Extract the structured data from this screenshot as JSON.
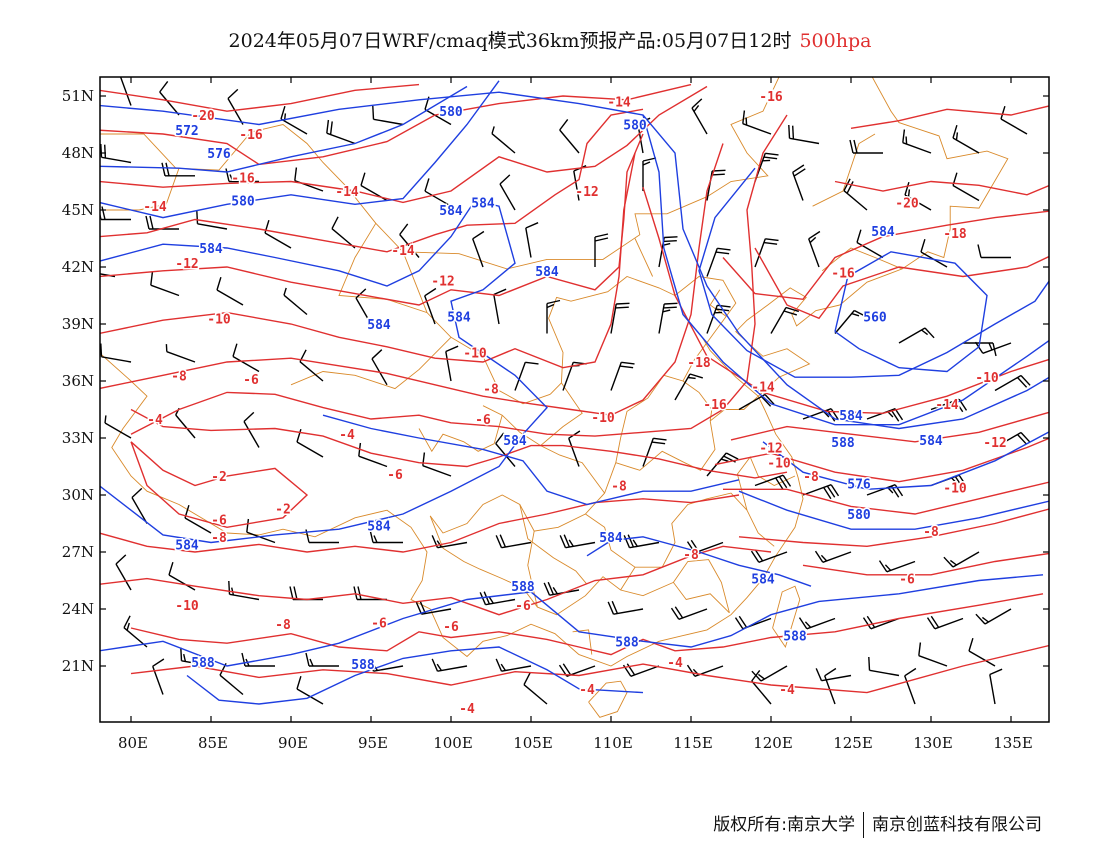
{
  "title": {
    "main": "2024年05月07日WRF/cmaq模式36km预报产品:05月07日12时",
    "level": "500hpa"
  },
  "axes": {
    "lat_labels": [
      "51N",
      "48N",
      "45N",
      "42N",
      "39N",
      "36N",
      "33N",
      "30N",
      "27N",
      "24N",
      "21N"
    ],
    "lon_labels": [
      "80E",
      "85E",
      "90E",
      "95E",
      "100E",
      "105E",
      "110E",
      "115E",
      "120E",
      "125E",
      "130E",
      "135E"
    ]
  },
  "colors": {
    "temperature": "#e03030",
    "height": "#1f3fe0",
    "borders": "#d98a2b",
    "wind": "#000000"
  },
  "temperature_labels": [
    {
      "text": "-20",
      "lon": 84.5,
      "lat": 50.0
    },
    {
      "text": "-16",
      "lon": 87.5,
      "lat": 49.0
    },
    {
      "text": "-16",
      "lon": 87.0,
      "lat": 46.7
    },
    {
      "text": "-14",
      "lon": 93.5,
      "lat": 46.0
    },
    {
      "text": "-14",
      "lon": 81.5,
      "lat": 45.2
    },
    {
      "text": "-14",
      "lon": 97.0,
      "lat": 42.9
    },
    {
      "text": "-12",
      "lon": 83.5,
      "lat": 42.2
    },
    {
      "text": "-12",
      "lon": 99.5,
      "lat": 41.3
    },
    {
      "text": "-10",
      "lon": 85.5,
      "lat": 39.3
    },
    {
      "text": "-10",
      "lon": 101.5,
      "lat": 37.5
    },
    {
      "text": "-8",
      "lon": 83.0,
      "lat": 36.3
    },
    {
      "text": "-6",
      "lon": 87.5,
      "lat": 36.1
    },
    {
      "text": "-8",
      "lon": 102.5,
      "lat": 35.6
    },
    {
      "text": "-6",
      "lon": 102.0,
      "lat": 34.0
    },
    {
      "text": "-4",
      "lon": 93.5,
      "lat": 33.2
    },
    {
      "text": "-4",
      "lon": 81.5,
      "lat": 34.0
    },
    {
      "text": "-2",
      "lon": 85.5,
      "lat": 31.0
    },
    {
      "text": "-6",
      "lon": 96.5,
      "lat": 31.1
    },
    {
      "text": "-2",
      "lon": 89.5,
      "lat": 29.3
    },
    {
      "text": "-6",
      "lon": 85.5,
      "lat": 28.7
    },
    {
      "text": "-8",
      "lon": 85.5,
      "lat": 27.8
    },
    {
      "text": "-10",
      "lon": 83.5,
      "lat": 24.2
    },
    {
      "text": "-8",
      "lon": 89.5,
      "lat": 23.2
    },
    {
      "text": "-6",
      "lon": 95.5,
      "lat": 23.3
    },
    {
      "text": "-6",
      "lon": 100.0,
      "lat": 23.1
    },
    {
      "text": "-6",
      "lon": 104.5,
      "lat": 24.2
    },
    {
      "text": "-8",
      "lon": 110.5,
      "lat": 30.5
    },
    {
      "text": "-10",
      "lon": 109.5,
      "lat": 34.1
    },
    {
      "text": "-12",
      "lon": 108.5,
      "lat": 46.0
    },
    {
      "text": "-14",
      "lon": 110.5,
      "lat": 50.7
    },
    {
      "text": "-16",
      "lon": 120.0,
      "lat": 51.0
    },
    {
      "text": "-18",
      "lon": 115.5,
      "lat": 37.0
    },
    {
      "text": "-16",
      "lon": 116.5,
      "lat": 34.8
    },
    {
      "text": "-14",
      "lon": 119.5,
      "lat": 35.7
    },
    {
      "text": "-12",
      "lon": 120.0,
      "lat": 32.5
    },
    {
      "text": "-10",
      "lon": 120.5,
      "lat": 31.7
    },
    {
      "text": "-8",
      "lon": 122.5,
      "lat": 31.0
    },
    {
      "text": "-8",
      "lon": 115.0,
      "lat": 26.9
    },
    {
      "text": "-6",
      "lon": 128.5,
      "lat": 25.6
    },
    {
      "text": "-4",
      "lon": 121.0,
      "lat": 19.8
    },
    {
      "text": "-4",
      "lon": 114.0,
      "lat": 21.2
    },
    {
      "text": "-4",
      "lon": 108.5,
      "lat": 19.8
    },
    {
      "text": "-4",
      "lon": 101.0,
      "lat": 18.8
    },
    {
      "text": "-8",
      "lon": 130.0,
      "lat": 28.1
    },
    {
      "text": "-10",
      "lon": 131.5,
      "lat": 30.4
    },
    {
      "text": "-14",
      "lon": 131.0,
      "lat": 34.8
    },
    {
      "text": "-12",
      "lon": 134.0,
      "lat": 32.8
    },
    {
      "text": "-10",
      "lon": 133.5,
      "lat": 36.2
    },
    {
      "text": "-16",
      "lon": 124.5,
      "lat": 41.7
    },
    {
      "text": "-18",
      "lon": 131.5,
      "lat": 43.8
    },
    {
      "text": "-20",
      "lon": 128.5,
      "lat": 45.4
    }
  ],
  "height_labels": [
    {
      "text": "572",
      "lon": 83.5,
      "lat": 49.2
    },
    {
      "text": "576",
      "lon": 85.5,
      "lat": 48.0
    },
    {
      "text": "580",
      "lon": 87.0,
      "lat": 45.5
    },
    {
      "text": "584",
      "lon": 85.0,
      "lat": 43.0
    },
    {
      "text": "580",
      "lon": 100.0,
      "lat": 50.2
    },
    {
      "text": "584",
      "lon": 100.0,
      "lat": 45.0
    },
    {
      "text": "584",
      "lon": 102.0,
      "lat": 45.4
    },
    {
      "text": "584",
      "lon": 106.0,
      "lat": 41.8
    },
    {
      "text": "584",
      "lon": 100.5,
      "lat": 39.4
    },
    {
      "text": "584",
      "lon": 95.5,
      "lat": 39.0
    },
    {
      "text": "580",
      "lon": 111.5,
      "lat": 49.5
    },
    {
      "text": "584",
      "lon": 104.0,
      "lat": 32.9
    },
    {
      "text": "584",
      "lon": 95.5,
      "lat": 28.4
    },
    {
      "text": "584",
      "lon": 83.5,
      "lat": 27.4
    },
    {
      "text": "584",
      "lon": 110.0,
      "lat": 27.8
    },
    {
      "text": "588",
      "lon": 104.5,
      "lat": 25.2
    },
    {
      "text": "588",
      "lon": 111.0,
      "lat": 22.3
    },
    {
      "text": "588",
      "lon": 84.5,
      "lat": 21.2
    },
    {
      "text": "588",
      "lon": 94.5,
      "lat": 21.1
    },
    {
      "text": "584",
      "lon": 119.5,
      "lat": 25.6
    },
    {
      "text": "588",
      "lon": 121.5,
      "lat": 22.6
    },
    {
      "text": "560",
      "lon": 126.5,
      "lat": 39.4
    },
    {
      "text": "584",
      "lon": 127.0,
      "lat": 43.9
    },
    {
      "text": "584",
      "lon": 125.0,
      "lat": 34.2
    },
    {
      "text": "588",
      "lon": 124.5,
      "lat": 32.8
    },
    {
      "text": "576",
      "lon": 125.5,
      "lat": 30.6
    },
    {
      "text": "580",
      "lon": 125.5,
      "lat": 29.0
    },
    {
      "text": "584",
      "lon": 130.0,
      "lat": 32.9
    }
  ],
  "footer": {
    "rights": "版权所有:南京大学",
    "company": "南京创蓝科技有限公司"
  }
}
